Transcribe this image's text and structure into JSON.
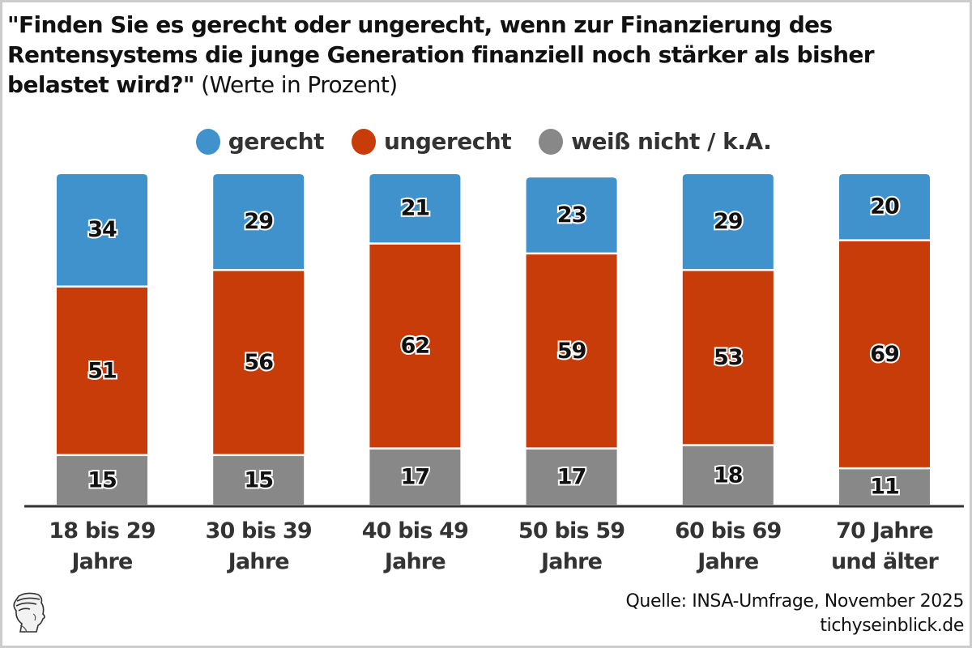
{
  "title": {
    "question": "\"Finden Sie es gerecht oder ungerecht, wenn zur Finanzierung des Rentensystems die junge Generation finanziell noch stärker als bisher belastet wird?\"",
    "unit": "(Werte in Prozent)"
  },
  "legend": [
    {
      "label": "gerecht",
      "color": "#3f92cc"
    },
    {
      "label": "ungerecht",
      "color": "#c83c0a"
    },
    {
      "label": "weiß nicht / k.A.",
      "color": "#888888"
    }
  ],
  "source": {
    "line1": "Quelle: INSA-Umfrage, November 2025",
    "line2": "tichyseinblick.de"
  },
  "logo": {
    "icon": "hermes-head-logo-icon"
  },
  "chart_data": {
    "type": "bar",
    "stacked": true,
    "title": "\"Finden Sie es gerecht oder ungerecht, wenn zur Finanzierung des Rentensystems die junge Generation finanziell noch stärker als bisher belastet wird?\" (Werte in Prozent)",
    "xlabel": "",
    "ylabel": "",
    "ylim": [
      0,
      100
    ],
    "grid": false,
    "legend_position": "top-center",
    "categories": [
      [
        "18 bis 29",
        "Jahre"
      ],
      [
        "30 bis 39",
        "Jahre"
      ],
      [
        "40 bis 49",
        "Jahre"
      ],
      [
        "50 bis 59",
        "Jahre"
      ],
      [
        "60 bis 69",
        "Jahre"
      ],
      [
        "70 Jahre",
        "und älter"
      ]
    ],
    "series": [
      {
        "name": "weiß nicht / k.A.",
        "color": "#888888",
        "values": [
          15,
          15,
          17,
          17,
          18,
          11
        ]
      },
      {
        "name": "ungerecht",
        "color": "#c83c0a",
        "values": [
          51,
          56,
          62,
          59,
          53,
          69
        ]
      },
      {
        "name": "gerecht",
        "color": "#3f92cc",
        "values": [
          34,
          29,
          21,
          23,
          29,
          20
        ]
      }
    ]
  }
}
